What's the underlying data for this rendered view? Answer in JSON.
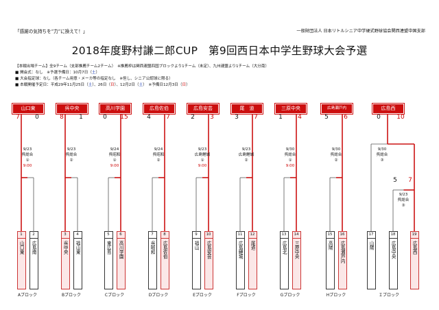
{
  "header": {
    "slogan": "「感謝の気持ちを”力”に換えて！」",
    "org": "一般財団法人 日本リトルシニア中学硬式野球協会関西連盟中国支部",
    "title": "2018年度野村謙二郎CUP　第9回西日本中学生野球大会予選"
  },
  "info": {
    "line1": "【本戦出場チーム】全9チーム（支部推薦チーム2チーム）　※推薦枠は関西連盟四国ブロックより1チーム（未定）、九州連盟より1チーム（大分南）",
    "line2_pre": "■ 開会式：なし　※予選予備日：10月7日（",
    "line2_day": "土",
    "line2_post": "）",
    "line3": "■ 大会指定球：なし（各チーム用意・メーカ等の指定なし　※但し、シニア公認球に限る）",
    "line4_a": "■ 本戦開催予定日：平成29年11月25日（",
    "line4_d1": "土",
    "line4_b": "）、26日（",
    "line4_d2": "日",
    "line4_c": "）、12月2日（",
    "line4_d3": "土",
    "line4_d": "）　※予備日12月3日（",
    "line4_d4": "日",
    "line4_e": "）"
  },
  "winners": [
    "山口東",
    "呉中央",
    "高川学園",
    "広島佐伯",
    "広島安芸",
    "尾　道",
    "三原中央",
    "広島瀬戸内",
    "広島西"
  ],
  "blocks": [
    {
      "label": "Aブロック",
      "date": "9/23",
      "venue": "呉総合",
      "game": "①",
      "time": "9:00",
      "scores": [
        "7",
        "0"
      ],
      "teams": [
        {
          "num": "1",
          "name": "山口東",
          "hl": true
        },
        {
          "num": "2",
          "name": "広島南",
          "hl": false
        }
      ]
    },
    {
      "label": "Bブロック",
      "date": "9/23",
      "venue": "呉総合",
      "game": "②",
      "time": "",
      "scores": [
        "8",
        "1"
      ],
      "teams": [
        {
          "num": "3",
          "name": "呉中央",
          "hl": true
        },
        {
          "num": "4",
          "name": "福山東",
          "hl": false
        }
      ]
    },
    {
      "label": "Cブロック",
      "date": "9/24",
      "venue": "呉昭和",
      "game": "①",
      "time": "9:00",
      "scores": [
        "0",
        "15"
      ],
      "teams": [
        {
          "num": "5",
          "name": "東広島",
          "hl": false
        },
        {
          "num": "6",
          "name": "高川学園",
          "hl": true
        }
      ]
    },
    {
      "label": "Dブロック",
      "date": "9/24",
      "venue": "呉昭和",
      "game": "②",
      "time": "",
      "scores": [
        "4",
        "7"
      ],
      "teams": [
        {
          "num": "7",
          "name": "呉昭和",
          "hl": false
        },
        {
          "num": "8",
          "name": "広島佐伯",
          "hl": true
        }
      ]
    },
    {
      "label": "Eブロック",
      "date": "9/23",
      "venue": "広島鯉城",
      "game": "①",
      "time": "9:00",
      "scores": [
        "2",
        "3"
      ],
      "teams": [
        {
          "num": "9",
          "name": "福山",
          "hl": false
        },
        {
          "num": "10",
          "name": "広島安芸",
          "hl": true
        }
      ]
    },
    {
      "label": "Fブロック",
      "date": "9/23",
      "venue": "広島鯉城",
      "game": "②",
      "time": "",
      "scores": [
        "3",
        "7"
      ],
      "teams": [
        {
          "num": "11",
          "name": "広島鯉城",
          "hl": false
        },
        {
          "num": "12",
          "name": "尾道",
          "hl": true
        }
      ]
    },
    {
      "label": "Gブロック",
      "date": "9/30",
      "venue": "呉総合",
      "game": "①",
      "time": "9:00",
      "scores": [
        "1",
        "4"
      ],
      "teams": [
        {
          "num": "13",
          "name": "広島北",
          "hl": false
        },
        {
          "num": "14",
          "name": "三原中央",
          "hl": true
        }
      ]
    },
    {
      "label": "Hブロック",
      "date": "9/30",
      "venue": "呉総合",
      "game": "②",
      "time": "",
      "scores": [
        "5",
        "6"
      ],
      "teams": [
        {
          "num": "15",
          "name": "高陽",
          "hl": false
        },
        {
          "num": "16",
          "name": "広島瀬戸内",
          "hl": true
        }
      ]
    }
  ],
  "blockI": {
    "label": "Ｉブロック",
    "final": {
      "date": "9/30",
      "venue": "呉総合",
      "game": "③",
      "scores": [
        "0",
        "10"
      ]
    },
    "semi": {
      "date": "9/23",
      "venue": "呉総合",
      "game": "③",
      "scores": [
        "5",
        "7"
      ]
    },
    "teams": [
      {
        "num": "17",
        "name": "山陽",
        "hl": false
      },
      {
        "num": "18",
        "name": "広島中央",
        "hl": false
      },
      {
        "num": "19",
        "name": "広島西",
        "hl": true
      }
    ]
  }
}
